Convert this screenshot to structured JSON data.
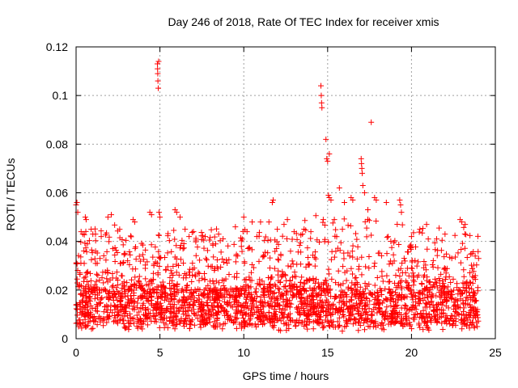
{
  "chart_data": {
    "type": "scatter",
    "title": "Day 246 of 2018, Rate Of TEC Index for receiver xmis",
    "xlabel": "GPS time / hours",
    "ylabel": "ROTI / TECUs",
    "xlim": [
      0,
      25
    ],
    "ylim": [
      0,
      0.12
    ],
    "x_ticks": [
      0,
      5,
      10,
      15,
      20,
      25
    ],
    "y_ticks": [
      0,
      0.02,
      0.04,
      0.06,
      0.08,
      0.1,
      0.12
    ],
    "x_tick_labels": [
      "0",
      "5",
      "10",
      "15",
      "20",
      "25"
    ],
    "y_tick_labels": [
      "0",
      "0.02",
      "0.04",
      "0.06",
      "0.08",
      "0.1",
      "0.12"
    ],
    "grid": true,
    "marker": "+",
    "color": "#ff0000",
    "points": [
      [
        0.0,
        0.055
      ],
      [
        0.05,
        0.056
      ],
      [
        0.1,
        0.052
      ],
      [
        0.3,
        0.044
      ],
      [
        0.4,
        0.043
      ],
      [
        0.55,
        0.05
      ],
      [
        0.6,
        0.049
      ],
      [
        0.9,
        0.045
      ],
      [
        1.0,
        0.043
      ],
      [
        1.5,
        0.042
      ],
      [
        1.9,
        0.05
      ],
      [
        2.1,
        0.051
      ],
      [
        2.6,
        0.045
      ],
      [
        3.4,
        0.049
      ],
      [
        3.5,
        0.048
      ],
      [
        4.4,
        0.052
      ],
      [
        4.5,
        0.051
      ],
      [
        4.85,
        0.113
      ],
      [
        4.86,
        0.111
      ],
      [
        4.87,
        0.109
      ],
      [
        4.88,
        0.106
      ],
      [
        4.9,
        0.103
      ],
      [
        4.92,
        0.114
      ],
      [
        4.95,
        0.052
      ],
      [
        5.0,
        0.05
      ],
      [
        5.9,
        0.053
      ],
      [
        6.0,
        0.052
      ],
      [
        6.2,
        0.05
      ],
      [
        6.5,
        0.045
      ],
      [
        7.0,
        0.044
      ],
      [
        7.7,
        0.042
      ],
      [
        8.5,
        0.043
      ],
      [
        9.5,
        0.046
      ],
      [
        10.0,
        0.05
      ],
      [
        10.5,
        0.048
      ],
      [
        11.0,
        0.048
      ],
      [
        11.5,
        0.048
      ],
      [
        11.7,
        0.056
      ],
      [
        11.75,
        0.057
      ],
      [
        12.0,
        0.045
      ],
      [
        12.4,
        0.047
      ],
      [
        12.6,
        0.049
      ],
      [
        13.0,
        0.044
      ],
      [
        13.5,
        0.043
      ],
      [
        14.0,
        0.044
      ],
      [
        14.6,
        0.104
      ],
      [
        14.62,
        0.1
      ],
      [
        14.64,
        0.097
      ],
      [
        14.66,
        0.095
      ],
      [
        14.9,
        0.082
      ],
      [
        14.95,
        0.074
      ],
      [
        15.0,
        0.073
      ],
      [
        15.1,
        0.076
      ],
      [
        15.05,
        0.059
      ],
      [
        15.1,
        0.058
      ],
      [
        15.2,
        0.057
      ],
      [
        15.4,
        0.049
      ],
      [
        15.7,
        0.062
      ],
      [
        16.0,
        0.056
      ],
      [
        16.4,
        0.058
      ],
      [
        16.5,
        0.057
      ],
      [
        17.0,
        0.074
      ],
      [
        17.02,
        0.072
      ],
      [
        17.04,
        0.07
      ],
      [
        17.06,
        0.068
      ],
      [
        17.1,
        0.063
      ],
      [
        17.2,
        0.06
      ],
      [
        17.4,
        0.053
      ],
      [
        17.6,
        0.089
      ],
      [
        17.8,
        0.058
      ],
      [
        17.9,
        0.057
      ],
      [
        18.5,
        0.056
      ],
      [
        19.3,
        0.057
      ],
      [
        19.35,
        0.055
      ],
      [
        19.4,
        0.052
      ],
      [
        20.0,
        0.042
      ],
      [
        20.5,
        0.045
      ],
      [
        20.9,
        0.047
      ],
      [
        21.0,
        0.041
      ],
      [
        21.5,
        0.041
      ],
      [
        22.0,
        0.043
      ],
      [
        22.9,
        0.049
      ],
      [
        23.0,
        0.048
      ],
      [
        23.2,
        0.047
      ],
      [
        23.6,
        0.035
      ],
      [
        23.8,
        0.034
      ],
      [
        24.0,
        0.033
      ]
    ],
    "dense_band": {
      "x_range": [
        0,
        24
      ],
      "y_range": [
        0.003,
        0.045
      ],
      "concentration": [
        0.005,
        0.02
      ]
    }
  }
}
